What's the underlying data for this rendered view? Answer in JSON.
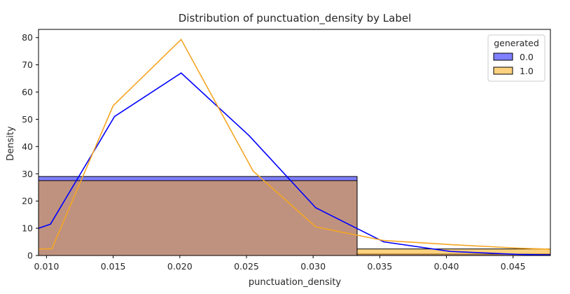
{
  "chart_data": {
    "type": "histogram+kde",
    "title": "Distribution of punctuation_density by Label",
    "xlabel": "punctuation_density",
    "ylabel": "Density",
    "xlim": [
      0.0094,
      0.0478
    ],
    "ylim": [
      0,
      83
    ],
    "xticks": [
      0.01,
      0.015,
      0.02,
      0.025,
      0.03,
      0.035,
      0.04,
      0.045
    ],
    "xtick_labels": [
      "0.010",
      "0.015",
      "0.020",
      "0.025",
      "0.030",
      "0.035",
      "0.040",
      "0.045"
    ],
    "yticks": [
      0,
      10,
      20,
      30,
      40,
      50,
      60,
      70,
      80
    ],
    "ytick_labels": [
      "0",
      "10",
      "20",
      "30",
      "40",
      "50",
      "60",
      "70",
      "80"
    ],
    "grid": false,
    "legend": {
      "title": "generated",
      "placement": "top-right",
      "entries": [
        "0.0",
        "1.0"
      ]
    },
    "histogram": {
      "bin_edges": [
        0.0094,
        0.0333,
        0.0478
      ],
      "series": [
        {
          "name": "0.0",
          "color": "#0000ff",
          "values": [
            29.0,
            0.5
          ]
        },
        {
          "name": "1.0",
          "color": "#ffa500",
          "values": [
            27.5,
            2.4
          ]
        }
      ]
    },
    "kde": [
      {
        "name": "0.0",
        "color": "#0000ff",
        "x": [
          0.0094,
          0.0103,
          0.0151,
          0.0201,
          0.0252,
          0.0302,
          0.0353,
          0.0403,
          0.0454,
          0.0478
        ],
        "y": [
          10.0,
          11.5,
          51.0,
          67.0,
          44.0,
          17.5,
          5.0,
          1.5,
          0.4,
          0.2
        ]
      },
      {
        "name": "1.0",
        "color": "#f5a623",
        "x": [
          0.0094,
          0.0104,
          0.015,
          0.0201,
          0.0255,
          0.0302,
          0.0353,
          0.0403,
          0.0454,
          0.0478
        ],
        "y": [
          2.3,
          2.5,
          55.0,
          79.3,
          31.0,
          10.5,
          5.5,
          4.0,
          2.7,
          2.3
        ]
      }
    ]
  }
}
